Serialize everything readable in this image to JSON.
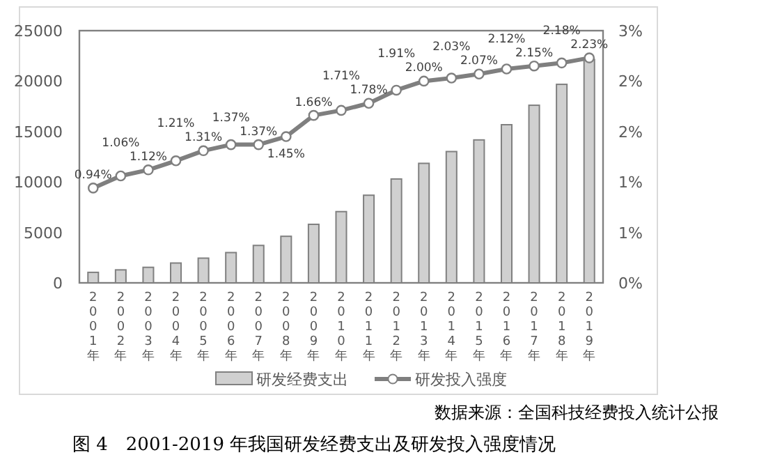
{
  "chart_data": {
    "type": "bar",
    "title": "图 4　2001-2019 年我国研发经费支出及研发投入强度情况",
    "annotations": [
      "数据来源：全国科技经费投入统计公报"
    ],
    "categories": [
      "2001年",
      "2002年",
      "2003年",
      "2004年",
      "2005年",
      "2006年",
      "2007年",
      "2008年",
      "2009年",
      "2010年",
      "2011年",
      "2012年",
      "2013年",
      "2014年",
      "2015年",
      "2016年",
      "2017年",
      "2018年",
      "2019年"
    ],
    "series": [
      {
        "name": "研发经费支出",
        "color": "#d0d0d0",
        "values": [
          1042,
          1288,
          1540,
          1966,
          2450,
          3003,
          3710,
          4616,
          5802,
          7063,
          8687,
          10298,
          11847,
          13016,
          14170,
          15677,
          17606,
          19678,
          22144
        ]
      },
      {
        "name": "研发投入强度",
        "type": "line",
        "axis": "y2",
        "color": "#7f7f7f",
        "values": [
          0.94,
          1.06,
          1.12,
          1.21,
          1.31,
          1.37,
          1.37,
          1.45,
          1.66,
          1.71,
          1.78,
          1.91,
          2.0,
          2.03,
          2.07,
          2.12,
          2.15,
          2.18,
          2.23
        ],
        "value_labels": [
          "0.94%",
          "1.06%",
          "1.12%",
          "1.21%",
          "1.31%",
          "1.37%",
          "1.37%",
          "1.45%",
          "1.66%",
          "1.71%",
          "1.78%",
          "1.91%",
          "2.00%",
          "2.03%",
          "2.07%",
          "2.12%",
          "2.15%",
          "2.18%",
          "2.23%"
        ]
      }
    ],
    "ylim": [
      0,
      25000
    ],
    "yticks": [
      0,
      5000,
      10000,
      15000,
      20000,
      25000
    ],
    "y2lim": [
      0,
      2.5
    ],
    "y2ticks": [
      {
        "value": 0,
        "label": "0%"
      },
      {
        "value": 0.5,
        "label": "1%"
      },
      {
        "value": 1,
        "label": "1%"
      },
      {
        "value": 1.5,
        "label": "2%"
      },
      {
        "value": 2,
        "label": "2%"
      },
      {
        "value": 2.5,
        "label": "3%"
      }
    ],
    "marker": "circle",
    "line_style": "solid",
    "grid": false,
    "legend": "bottom"
  }
}
